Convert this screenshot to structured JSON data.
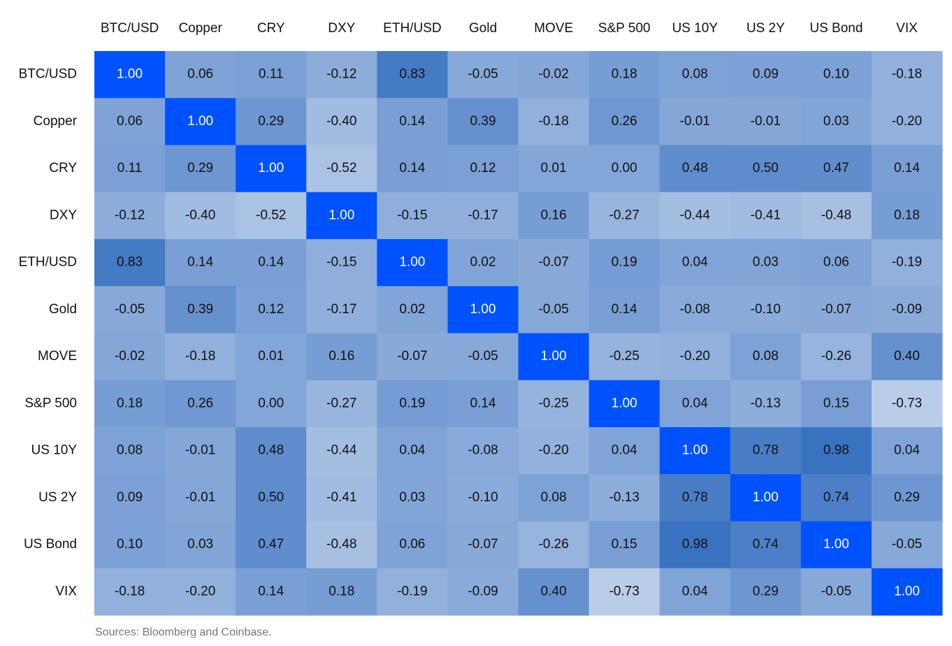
{
  "chart_data": {
    "type": "heatmap",
    "x_categories": [
      "BTC/USD",
      "Copper",
      "CRY",
      "DXY",
      "ETH/USD",
      "Gold",
      "MOVE",
      "S&P 500",
      "US 10Y",
      "US 2Y",
      "US Bond",
      "VIX"
    ],
    "y_categories": [
      "BTC/USD",
      "Copper",
      "CRY",
      "DXY",
      "ETH/USD",
      "Gold",
      "MOVE",
      "S&P 500",
      "US 10Y",
      "US 2Y",
      "US Bond",
      "VIX"
    ],
    "values": [
      [
        1,
        0.06,
        0.11,
        -0.12,
        0.83,
        -0.05,
        -0.02,
        0.18,
        0.08,
        0.09,
        0.1,
        -0.18
      ],
      [
        0.06,
        1,
        0.29,
        -0.4,
        0.14,
        0.39,
        -0.18,
        0.26,
        -0.01,
        -0.01,
        0.03,
        -0.2
      ],
      [
        0.11,
        0.29,
        1,
        -0.52,
        0.14,
        0.12,
        0.01,
        0,
        0.48,
        0.5,
        0.47,
        0.14
      ],
      [
        -0.12,
        -0.4,
        -0.52,
        1,
        -0.15,
        -0.17,
        0.16,
        -0.27,
        -0.44,
        -0.41,
        -0.48,
        0.18
      ],
      [
        0.83,
        0.14,
        0.14,
        -0.15,
        1,
        0.02,
        -0.07,
        0.19,
        0.04,
        0.03,
        0.06,
        -0.19
      ],
      [
        -0.05,
        0.39,
        0.12,
        -0.17,
        0.02,
        1,
        -0.05,
        0.14,
        -0.08,
        -0.1,
        -0.07,
        -0.09
      ],
      [
        -0.02,
        -0.18,
        0.01,
        0.16,
        -0.07,
        -0.05,
        1,
        -0.25,
        -0.2,
        0.08,
        -0.26,
        0.4
      ],
      [
        0.18,
        0.26,
        0,
        -0.27,
        0.19,
        0.14,
        -0.25,
        1,
        0.04,
        -0.13,
        0.15,
        -0.73
      ],
      [
        0.08,
        -0.01,
        0.48,
        -0.44,
        0.04,
        -0.08,
        -0.2,
        0.04,
        1,
        0.78,
        0.98,
        0.04
      ],
      [
        0.09,
        -0.01,
        0.5,
        -0.41,
        0.03,
        -0.1,
        0.08,
        -0.13,
        0.78,
        1,
        0.74,
        0.29
      ],
      [
        0.1,
        0.03,
        0.47,
        -0.48,
        0.06,
        -0.07,
        -0.26,
        0.15,
        0.98,
        0.74,
        1,
        -0.05
      ],
      [
        -0.18,
        -0.2,
        0.14,
        0.18,
        -0.19,
        -0.09,
        0.4,
        -0.73,
        0.04,
        0.29,
        -0.05,
        1
      ]
    ],
    "value_labels": [
      [
        "1.00",
        "0.06",
        "0.11",
        "-0.12",
        "0.83",
        "-0.05",
        "-0.02",
        "0.18",
        "0.08",
        "0.09",
        "0.10",
        "-0.18"
      ],
      [
        "0.06",
        "1.00",
        "0.29",
        "-0.40",
        "0.14",
        "0.39",
        "-0.18",
        "0.26",
        "-0.01",
        "-0.01",
        "0.03",
        "-0.20"
      ],
      [
        "0.11",
        "0.29",
        "1.00",
        "-0.52",
        "0.14",
        "0.12",
        "0.01",
        "0.00",
        "0.48",
        "0.50",
        "0.47",
        "0.14"
      ],
      [
        "-0.12",
        "-0.40",
        "-0.52",
        "1.00",
        "-0.15",
        "-0.17",
        "0.16",
        "-0.27",
        "-0.44",
        "-0.41",
        "-0.48",
        "0.18"
      ],
      [
        "0.83",
        "0.14",
        "0.14",
        "-0.15",
        "1.00",
        "0.02",
        "-0.07",
        "0.19",
        "0.04",
        "0.03",
        "0.06",
        "-0.19"
      ],
      [
        "-0.05",
        "0.39",
        "0.12",
        "-0.17",
        "0.02",
        "1.00",
        "-0.05",
        "0.14",
        "-0.08",
        "-0.10",
        "-0.07",
        "-0.09"
      ],
      [
        "-0.02",
        "-0.18",
        "0.01",
        "0.16",
        "-0.07",
        "-0.05",
        "1.00",
        "-0.25",
        "-0.20",
        "0.08",
        "-0.26",
        "0.40"
      ],
      [
        "0.18",
        "0.26",
        "0.00",
        "-0.27",
        "0.19",
        "0.14",
        "-0.25",
        "1.00",
        "0.04",
        "-0.13",
        "0.15",
        "-0.73"
      ],
      [
        "0.08",
        "-0.01",
        "0.48",
        "-0.44",
        "0.04",
        "-0.08",
        "-0.20",
        "0.04",
        "1.00",
        "0.78",
        "0.98",
        "0.04"
      ],
      [
        "0.09",
        "-0.01",
        "0.50",
        "-0.41",
        "0.03",
        "-0.10",
        "0.08",
        "-0.13",
        "0.78",
        "1.00",
        "0.74",
        "0.29"
      ],
      [
        "0.10",
        "0.03",
        "0.47",
        "-0.48",
        "0.06",
        "-0.07",
        "-0.26",
        "0.15",
        "0.98",
        "0.74",
        "1.00",
        "-0.05"
      ],
      [
        "-0.18",
        "-0.20",
        "0.14",
        "0.18",
        "-0.19",
        "-0.09",
        "0.40",
        "-0.73",
        "0.04",
        "0.29",
        "-0.05",
        "1.00"
      ]
    ],
    "color_low": "#bacde8",
    "color_high": "#3a72c2",
    "color_max": "#0052ff",
    "note": "Sources: Bloomberg and Coinbase."
  }
}
